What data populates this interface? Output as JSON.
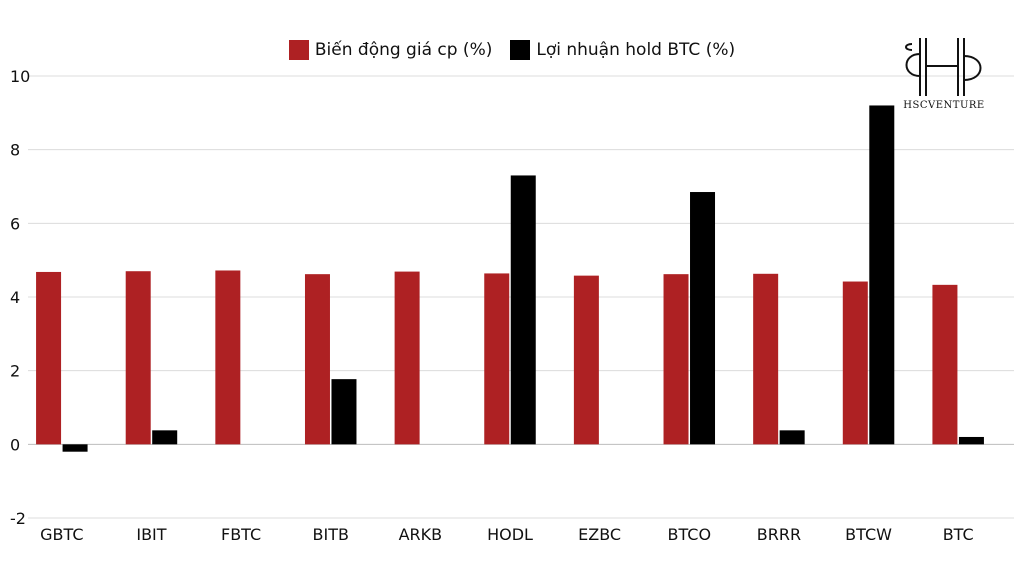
{
  "chart_data": {
    "type": "bar",
    "categories": [
      "GBTC",
      "IBIT",
      "FBTC",
      "BITB",
      "ARKB",
      "HODL",
      "EZBC",
      "BTCO",
      "BRRR",
      "BTCW",
      "BTC"
    ],
    "series": [
      {
        "name": "Biến động giá cp (%)",
        "color": "#ae2123",
        "values": [
          4.68,
          4.7,
          4.72,
          4.62,
          4.69,
          4.64,
          4.58,
          4.62,
          4.63,
          4.42,
          4.33
        ]
      },
      {
        "name": "Lợi nhuận hold BTC (%)",
        "color": "#000000",
        "values": [
          -0.2,
          0.38,
          0,
          1.77,
          0,
          7.3,
          0,
          6.85,
          0.38,
          9.2,
          0.2
        ]
      }
    ],
    "yticks": [
      10,
      8,
      6,
      4,
      2,
      0,
      -2
    ],
    "ylim": [
      -2,
      10
    ],
    "grid": true,
    "legend_position": "top-center"
  },
  "logo": {
    "text": "HSCVENTURE",
    "icon": "hs-monogram-logo"
  }
}
